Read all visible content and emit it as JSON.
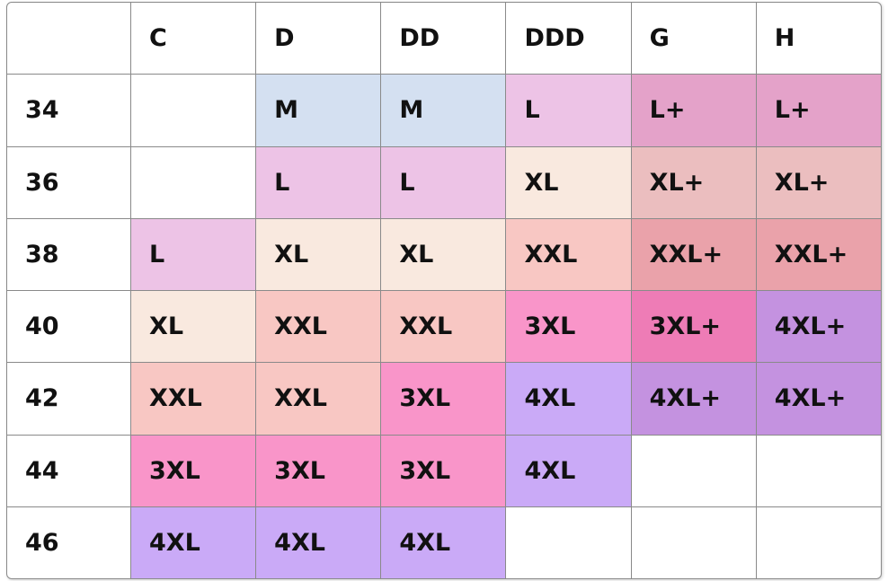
{
  "table": {
    "header": [
      null,
      "C",
      "D",
      "DD",
      "DDD",
      "G",
      "H"
    ],
    "rows": [
      {
        "band": "34",
        "cells": [
          null,
          {
            "text": "M",
            "color": "#d4e0f1"
          },
          {
            "text": "M",
            "color": "#d4e0f1"
          },
          {
            "text": "L",
            "color": "#edc3e6"
          },
          {
            "text": "L+",
            "color": "#e4a2c9"
          },
          {
            "text": "L+",
            "color": "#e4a2c9"
          }
        ]
      },
      {
        "band": "36",
        "cells": [
          null,
          {
            "text": "L",
            "color": "#edc3e6"
          },
          {
            "text": "L",
            "color": "#edc3e6"
          },
          {
            "text": "XL",
            "color": "#f9e9df"
          },
          {
            "text": "XL+",
            "color": "#ebbebf"
          },
          {
            "text": "XL+",
            "color": "#ebbebf"
          }
        ]
      },
      {
        "band": "38",
        "cells": [
          {
            "text": "L",
            "color": "#edc3e6"
          },
          {
            "text": "XL",
            "color": "#f9e9df"
          },
          {
            "text": "XL",
            "color": "#f9e9df"
          },
          {
            "text": "XXL",
            "color": "#f8c7c3"
          },
          {
            "text": "XXL+",
            "color": "#eaa2aa"
          },
          {
            "text": "XXL+",
            "color": "#eaa2aa"
          }
        ]
      },
      {
        "band": "40",
        "cells": [
          {
            "text": "XL",
            "color": "#f9e9df"
          },
          {
            "text": "XXL",
            "color": "#f8c7c3"
          },
          {
            "text": "XXL",
            "color": "#f8c7c3"
          },
          {
            "text": "3XL",
            "color": "#f995c9"
          },
          {
            "text": "3XL+",
            "color": "#ee7cb6"
          },
          {
            "text": "4XL+",
            "color": "#c492e0"
          }
        ]
      },
      {
        "band": "42",
        "cells": [
          {
            "text": "XXL",
            "color": "#f8c7c3"
          },
          {
            "text": "XXL",
            "color": "#f8c7c3"
          },
          {
            "text": "3XL",
            "color": "#f995c9"
          },
          {
            "text": "4XL",
            "color": "#caaaf7"
          },
          {
            "text": "4XL+",
            "color": "#c492e0"
          },
          {
            "text": "4XL+",
            "color": "#c492e0"
          }
        ]
      },
      {
        "band": "44",
        "cells": [
          {
            "text": "3XL",
            "color": "#f995c9"
          },
          {
            "text": "3XL",
            "color": "#f995c9"
          },
          {
            "text": "3XL",
            "color": "#f995c9"
          },
          {
            "text": "4XL",
            "color": "#caaaf7"
          },
          null,
          null
        ]
      },
      {
        "band": "46",
        "cells": [
          {
            "text": "4XL",
            "color": "#caaaf7"
          },
          {
            "text": "4XL",
            "color": "#caaaf7"
          },
          {
            "text": "4XL",
            "color": "#caaaf7"
          },
          null,
          null,
          null
        ]
      }
    ]
  }
}
